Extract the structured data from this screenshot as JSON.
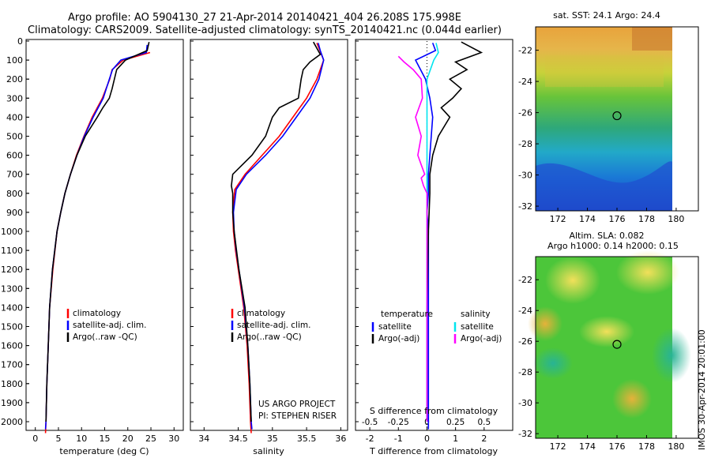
{
  "header": {
    "line1": "Argo profile: AO 5904130_27 21-Apr-2014 20140421_404 26.208S 175.998E",
    "line2": "Climatology: CARS2009. Satellite-adjusted climatology: synTS_20140421.nc (0.044d earlier)"
  },
  "colors": {
    "climatology": "#ff0000",
    "satellite": "#0000ff",
    "argo": "#000000",
    "sat_salinity": "#00e5ee",
    "argo_salinity": "#ff00ff"
  },
  "depth_axis": {
    "ticks": [
      "0",
      "100",
      "200",
      "300",
      "400",
      "500",
      "600",
      "700",
      "800",
      "900",
      "1000",
      "1100",
      "1200",
      "1300",
      "1400",
      "1500",
      "1600",
      "1700",
      "1800",
      "1900",
      "2000"
    ]
  },
  "chart_data": [
    {
      "type": "line",
      "id": "temperature",
      "xlabel": "temperature (deg C)",
      "xlim": [
        -2,
        32
      ],
      "ylim": [
        2070,
        0
      ],
      "x_ticks": [
        "0",
        "5",
        "10",
        "15",
        "20",
        "25",
        "30"
      ],
      "legend": [
        "climatology",
        "satellite-adj. clim.",
        "Argo(..raw -QC)"
      ],
      "series": [
        {
          "name": "climatology",
          "depth": [
            60,
            100,
            150,
            200,
            300,
            400,
            500,
            600,
            700,
            800,
            900,
            1000,
            1200,
            1400,
            1600,
            1800,
            2000,
            2060
          ],
          "values": [
            24.8,
            19.0,
            16.6,
            16.1,
            14.5,
            12.3,
            10.5,
            8.9,
            7.6,
            6.4,
            5.5,
            4.7,
            3.8,
            3.1,
            2.8,
            2.5,
            2.3,
            2.2
          ]
        },
        {
          "name": "satellite-adj. clim.",
          "depth": [
            20,
            60,
            100,
            150,
            200,
            300,
            400,
            500,
            600,
            700,
            800,
            900,
            1000,
            1200,
            1400,
            1600,
            1800,
            2000,
            2040
          ],
          "values": [
            24.2,
            24.0,
            18.5,
            16.7,
            16.0,
            14.7,
            12.5,
            10.6,
            9.0,
            7.6,
            6.4,
            5.5,
            4.7,
            3.7,
            3.1,
            2.8,
            2.5,
            2.3,
            2.2
          ]
        },
        {
          "name": "Argo(..raw -QC)",
          "depth": [
            5,
            50,
            100,
            150,
            200,
            250,
            300,
            350,
            400,
            500,
            600,
            700,
            800,
            900,
            1000,
            1200,
            1400,
            1600,
            1800,
            2000
          ],
          "values": [
            24.6,
            24.2,
            19.5,
            17.6,
            17.1,
            16.6,
            16.0,
            14.6,
            13.4,
            10.8,
            9.0,
            7.6,
            6.4,
            5.5,
            4.7,
            3.7,
            3.1,
            2.8,
            2.5,
            2.3
          ]
        }
      ]
    },
    {
      "type": "line",
      "id": "salinity",
      "xlabel": "salinity",
      "xlim": [
        33.8,
        36.1
      ],
      "ylim": [
        2070,
        0
      ],
      "x_ticks": [
        "34",
        "34.5",
        "35",
        "35.5",
        "36"
      ],
      "legend": [
        "climatology",
        "satellite-adj. clim.",
        "Argo(..raw -QC)"
      ],
      "annotation": [
        "US ARGO PROJECT",
        "PI: STEPHEN RISER"
      ],
      "series": [
        {
          "name": "climatology",
          "depth": [
            10,
            100,
            200,
            300,
            400,
            500,
            600,
            700,
            780,
            900,
            1000,
            1100,
            1200,
            1400,
            1600,
            1800,
            2000,
            2060
          ],
          "values": [
            35.65,
            35.75,
            35.65,
            35.5,
            35.3,
            35.1,
            34.85,
            34.6,
            34.45,
            34.42,
            34.43,
            34.46,
            34.5,
            34.58,
            34.63,
            34.66,
            34.68,
            34.69
          ]
        },
        {
          "name": "satellite-adj. clim.",
          "depth": [
            10,
            50,
            100,
            200,
            300,
            400,
            500,
            600,
            700,
            780,
            900,
            1000,
            1100,
            1200,
            1400,
            1600,
            1800,
            2000,
            2040
          ],
          "values": [
            35.67,
            35.7,
            35.75,
            35.68,
            35.55,
            35.35,
            35.15,
            34.9,
            34.62,
            34.47,
            34.43,
            34.44,
            34.47,
            34.51,
            34.59,
            34.64,
            34.67,
            34.69,
            34.7
          ]
        },
        {
          "name": "Argo(..raw -QC)",
          "depth": [
            5,
            70,
            110,
            150,
            200,
            300,
            350,
            400,
            500,
            600,
            700,
            760,
            800,
            900,
            1000,
            1200,
            1400,
            1600,
            1800,
            2000
          ],
          "values": [
            35.6,
            35.7,
            35.55,
            35.45,
            35.42,
            35.38,
            35.1,
            35.0,
            34.9,
            34.7,
            34.42,
            34.4,
            34.42,
            34.42,
            34.44,
            34.51,
            34.6,
            34.64,
            34.67,
            34.69
          ]
        }
      ]
    },
    {
      "type": "line",
      "id": "difference",
      "xlabel": "T difference from climatology",
      "xlabel_top": "S difference from climatology",
      "xlim": [
        -2.5,
        3
      ],
      "ylim": [
        2070,
        0
      ],
      "x_ticks": [
        "-2",
        "-1",
        "0",
        "1",
        "2"
      ],
      "s_ticks": [
        "-0.5",
        "-0.25",
        "0",
        "0.25",
        "0.5"
      ],
      "legend_titles": [
        "temperature",
        "salinity"
      ],
      "legend": [
        "satellite",
        "Argo(-adj)",
        "satellite",
        "Argo(-adj)"
      ],
      "series": [
        {
          "name": "temperature satellite",
          "depth": [
            10,
            50,
            100,
            200,
            300,
            400,
            500,
            600,
            700,
            800,
            900,
            1000,
            1200,
            1600,
            2000,
            2040
          ],
          "values": [
            0.2,
            0.3,
            -0.4,
            -0.05,
            0.1,
            0.2,
            0.15,
            0.1,
            0.05,
            0.05,
            0.0,
            0.05,
            0.05,
            0.05,
            0.05,
            0.05
          ]
        },
        {
          "name": "temperature Argo(-adj)",
          "depth": [
            5,
            60,
            110,
            150,
            200,
            250,
            300,
            350,
            400,
            500,
            600,
            700,
            800,
            1000,
            1400,
            2000
          ],
          "values": [
            1.2,
            1.9,
            1.0,
            1.4,
            0.8,
            1.2,
            0.9,
            0.5,
            0.8,
            0.4,
            0.2,
            0.1,
            0.1,
            0.05,
            0.0,
            0.0
          ]
        },
        {
          "name": "salinity satellite",
          "depth": [
            10,
            60,
            100,
            200,
            300,
            400,
            600,
            800,
            1000,
            1400,
            2000
          ],
          "values": [
            0.08,
            0.1,
            0.06,
            0.0,
            0.0,
            0.0,
            0.0,
            0.0,
            0.0,
            0.0,
            0.0
          ]
        },
        {
          "name": "salinity Argo(-adj)",
          "depth": [
            80,
            110,
            150,
            200,
            300,
            400,
            500,
            600,
            650,
            700,
            720,
            760,
            800,
            900,
            1000,
            1100,
            1200,
            1400,
            1600,
            1800,
            2000
          ],
          "values": [
            -0.25,
            -0.2,
            -0.12,
            -0.05,
            -0.04,
            -0.1,
            -0.05,
            -0.08,
            -0.05,
            -0.02,
            -0.05,
            -0.03,
            0.0,
            0.0,
            0.0,
            0.0,
            0.0,
            0.0,
            0.0,
            0.0,
            0.0
          ]
        }
      ]
    },
    {
      "type": "heatmap",
      "id": "sst_map",
      "title": "sat. SST: 24.1  Argo: 24.4",
      "xlim": [
        170.5,
        181.5
      ],
      "ylim": [
        -32.3,
        -20.5
      ],
      "x_ticks": [
        "172",
        "174",
        "176",
        "178",
        "180"
      ],
      "y_ticks": [
        "-22",
        "-24",
        "-26",
        "-28",
        "-30",
        "-32"
      ],
      "marker": [
        176.0,
        -26.2
      ]
    },
    {
      "type": "heatmap",
      "id": "sla_map",
      "title": "Altim. SLA: 0.082",
      "subtitle": "Argo h1000: 0.14  h2000: 0.15",
      "xlim": [
        170.5,
        181.5
      ],
      "ylim": [
        -32.3,
        -20.5
      ],
      "x_ticks": [
        "172",
        "174",
        "176",
        "178",
        "180"
      ],
      "y_ticks": [
        "-22",
        "-24",
        "-26",
        "-28",
        "-30",
        "-32"
      ],
      "marker": [
        176.0,
        -26.2
      ]
    }
  ],
  "side_label": "IMOS 30-Apr-2014 20:01:00"
}
